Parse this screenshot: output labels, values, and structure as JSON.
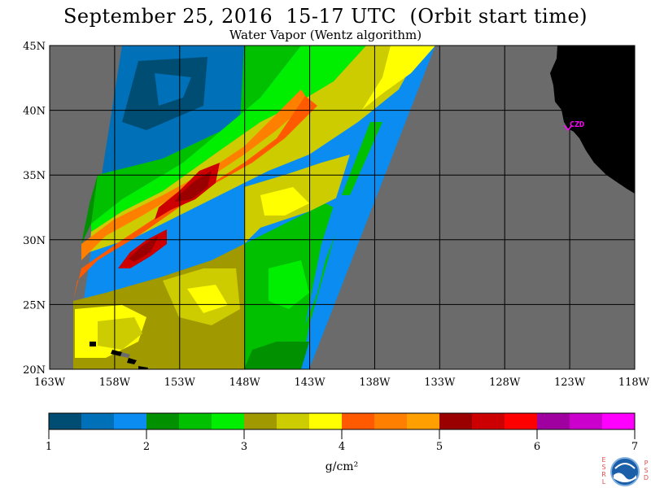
{
  "title": "September 25, 2016  15-17 UTC  (Orbit start time)",
  "subtitle": "Water Vapor (Wentz algorithm)",
  "map": {
    "lat_range": [
      20,
      45
    ],
    "lon_range": [
      -163,
      -118
    ],
    "lat_ticks": [
      {
        "value": 45,
        "label": "45N"
      },
      {
        "value": 40,
        "label": "40N"
      },
      {
        "value": 35,
        "label": "35N"
      },
      {
        "value": 30,
        "label": "30N"
      },
      {
        "value": 25,
        "label": "25N"
      },
      {
        "value": 20,
        "label": "20N"
      }
    ],
    "lon_ticks": [
      {
        "value": -163,
        "label": "163W"
      },
      {
        "value": -158,
        "label": "158W"
      },
      {
        "value": -153,
        "label": "153W"
      },
      {
        "value": -148,
        "label": "148W"
      },
      {
        "value": -143,
        "label": "143W"
      },
      {
        "value": -138,
        "label": "138W"
      },
      {
        "value": -133,
        "label": "133W"
      },
      {
        "value": -128,
        "label": "128W"
      },
      {
        "value": -123,
        "label": "123W"
      },
      {
        "value": -118,
        "label": "118W"
      }
    ],
    "grid": true,
    "no_data_color": "#6b6b6b",
    "land_color": "#000000",
    "grid_color": "#000000",
    "station": {
      "label": "CZD",
      "lat": 38.6,
      "lon": -123.2,
      "color": "#ff00ff"
    }
  },
  "colorbar": {
    "unit": "g/cm²",
    "range": [
      1,
      7
    ],
    "tick_labels": [
      "1",
      "2",
      "3",
      "4",
      "5",
      "6",
      "7"
    ],
    "colors": [
      "#004d73",
      "#0070b8",
      "#0a8cf0",
      "#009000",
      "#00c000",
      "#00ee00",
      "#a09a00",
      "#cccc00",
      "#ffff00",
      "#ff5a00",
      "#ff8000",
      "#ffa000",
      "#9a0000",
      "#cc0000",
      "#ff0000",
      "#a000a0",
      "#cc00cc",
      "#ff00ff"
    ]
  },
  "logo": {
    "name": "noaa-logo-icon",
    "left_letters": [
      "E",
      "S",
      "R",
      "L"
    ],
    "right_letters": [
      "P",
      "S",
      "D"
    ]
  }
}
